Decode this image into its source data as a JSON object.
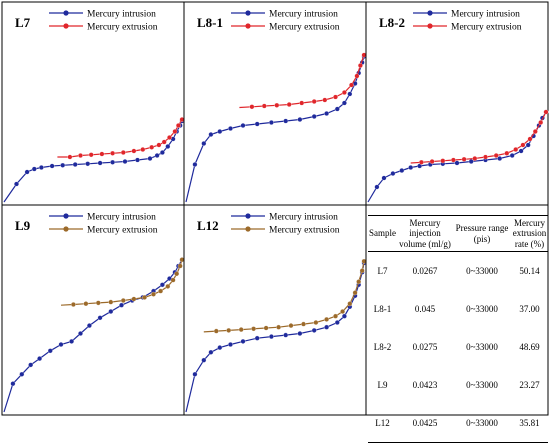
{
  "legend": {
    "intrusion": "Mercury intrusion",
    "extrusion": "Mercury extrusion"
  },
  "colors": {
    "intrusion": "#1f2a9c",
    "extrusion_red": "#e0262b",
    "extrusion_olive": "#9c6a2a"
  },
  "chart_data": [
    {
      "type": "line",
      "title": "L7",
      "xlabel": "",
      "ylabel": "",
      "xlim": [
        0,
        100
      ],
      "ylim": [
        0,
        100
      ],
      "legend_position": "top-right",
      "grid": false,
      "series": [
        {
          "name": "Mercury intrusion",
          "color": "#1f2a9c",
          "x": [
            0,
            7,
            13,
            17,
            21,
            27,
            33,
            40,
            47,
            54,
            61,
            68,
            75,
            82,
            86,
            89,
            92,
            95,
            97,
            99,
            100
          ],
          "y": [
            0,
            12,
            20,
            22,
            23,
            24,
            24.5,
            25,
            25.5,
            26,
            26.5,
            27,
            28,
            29,
            31,
            33,
            37,
            42,
            47,
            51,
            54
          ]
        },
        {
          "name": "Mercury extrusion",
          "color": "#e0262b",
          "x": [
            30,
            37,
            43,
            49,
            55,
            61,
            67,
            73,
            78,
            83,
            87,
            90,
            93,
            96,
            98,
            100
          ],
          "y": [
            30,
            30,
            31,
            31.5,
            32,
            32.5,
            33,
            34,
            35,
            36.5,
            38,
            40,
            43,
            47,
            51,
            55
          ]
        }
      ]
    },
    {
      "type": "line",
      "title": "L8-1",
      "xlabel": "",
      "ylabel": "",
      "xlim": [
        0,
        100
      ],
      "ylim": [
        0,
        100
      ],
      "legend_position": "top-right",
      "grid": false,
      "series": [
        {
          "name": "Mercury intrusion",
          "color": "#1f2a9c",
          "x": [
            0,
            5,
            10,
            14,
            19,
            25,
            32,
            40,
            48,
            56,
            64,
            72,
            79,
            85,
            89,
            92,
            95,
            97,
            99,
            100
          ],
          "y": [
            0,
            25,
            39,
            45,
            47,
            49,
            51,
            52,
            53,
            54,
            55,
            57,
            59,
            62,
            66,
            72,
            79,
            86,
            93,
            97
          ]
        },
        {
          "name": "Mercury extrusion",
          "color": "#e0262b",
          "x": [
            30,
            37,
            44,
            51,
            58,
            65,
            72,
            78,
            84,
            89,
            93,
            96,
            98,
            100
          ],
          "y": [
            63,
            63.5,
            64,
            64.5,
            65,
            66,
            67,
            68,
            70,
            73,
            78,
            84,
            91,
            98
          ]
        }
      ]
    },
    {
      "type": "line",
      "title": "L8-2",
      "xlabel": "",
      "ylabel": "",
      "xlim": [
        0,
        100
      ],
      "ylim": [
        0,
        100
      ],
      "legend_position": "top-right",
      "grid": false,
      "series": [
        {
          "name": "Mercury intrusion",
          "color": "#1f2a9c",
          "x": [
            0,
            5,
            9,
            14,
            19,
            24,
            29,
            35,
            42,
            50,
            58,
            66,
            74,
            81,
            86,
            90,
            93,
            96,
            98,
            100
          ],
          "y": [
            0,
            10,
            16,
            19,
            21,
            23,
            24,
            25,
            25.5,
            26,
            27,
            28,
            29,
            31,
            34,
            38,
            44,
            51,
            56,
            60
          ]
        },
        {
          "name": "Mercury extrusion",
          "color": "#e0262b",
          "x": [
            24,
            30,
            36,
            42,
            48,
            54,
            60,
            66,
            72,
            78,
            83,
            87,
            91,
            94,
            97,
            100
          ],
          "y": [
            26,
            26.5,
            27,
            27.5,
            28,
            28.5,
            29,
            30,
            31,
            32.5,
            35,
            38,
            42,
            47,
            53,
            60
          ]
        }
      ]
    },
    {
      "type": "line",
      "title": "L9",
      "xlabel": "",
      "ylabel": "",
      "xlim": [
        0,
        100
      ],
      "ylim": [
        0,
        100
      ],
      "legend_position": "top-right",
      "grid": false,
      "series": [
        {
          "name": "Mercury intrusion",
          "color": "#1f2a9c",
          "x": [
            0,
            5,
            10,
            15,
            20,
            26,
            32,
            38,
            43,
            48,
            54,
            60,
            66,
            72,
            78,
            84,
            89,
            93,
            96,
            98,
            100
          ],
          "y": [
            0,
            18,
            24,
            30,
            34,
            39,
            43,
            45,
            50,
            55,
            60,
            64,
            68,
            71,
            73,
            77,
            81,
            85,
            89,
            93,
            97
          ]
        },
        {
          "name": "Mercury extrusion",
          "color": "#9c6a2a",
          "x": [
            32,
            39,
            46,
            53,
            60,
            67,
            73,
            79,
            84,
            88,
            92,
            95,
            97,
            99,
            100
          ],
          "y": [
            68,
            68.5,
            69,
            69.5,
            70,
            71,
            72,
            73,
            75,
            77,
            80,
            84,
            88,
            93,
            97
          ]
        }
      ]
    },
    {
      "type": "line",
      "title": "L12",
      "xlabel": "",
      "ylabel": "",
      "xlim": [
        0,
        100
      ],
      "ylim": [
        0,
        100
      ],
      "legend_position": "top-right",
      "grid": false,
      "series": [
        {
          "name": "Mercury intrusion",
          "color": "#1f2a9c",
          "x": [
            0,
            5,
            10,
            14,
            19,
            25,
            32,
            40,
            48,
            56,
            64,
            72,
            79,
            85,
            89,
            92,
            95,
            97,
            99,
            100
          ],
          "y": [
            0,
            24,
            33,
            38,
            41,
            43,
            45,
            47,
            48,
            49,
            50,
            52,
            54,
            57,
            61,
            67,
            74,
            81,
            89,
            95
          ]
        },
        {
          "name": "Mercury extrusion",
          "color": "#9c6a2a",
          "x": [
            10,
            17,
            24,
            31,
            38,
            45,
            52,
            59,
            66,
            73,
            79,
            84,
            88,
            92,
            95,
            97,
            99,
            100
          ],
          "y": [
            51,
            51.5,
            52,
            52.5,
            53,
            53.5,
            54,
            55,
            56,
            57,
            59,
            61,
            64,
            69,
            76,
            83,
            90,
            96
          ]
        }
      ]
    },
    {
      "type": "table",
      "headers": [
        "Sample",
        "Mercury injection volume (ml/g)",
        "Pressure range (pis)",
        "Mercury extrusion rate (%)"
      ],
      "rows": [
        [
          "L7",
          "0.0267",
          "0~33000",
          "50.14"
        ],
        [
          "L8-1",
          "0.045",
          "0~33000",
          "37.00"
        ],
        [
          "L8-2",
          "0.0275",
          "0~33000",
          "48.69"
        ],
        [
          "L9",
          "0.0423",
          "0~33000",
          "23.27"
        ],
        [
          "L12",
          "0.0425",
          "0~33000",
          "35.81"
        ]
      ]
    }
  ]
}
